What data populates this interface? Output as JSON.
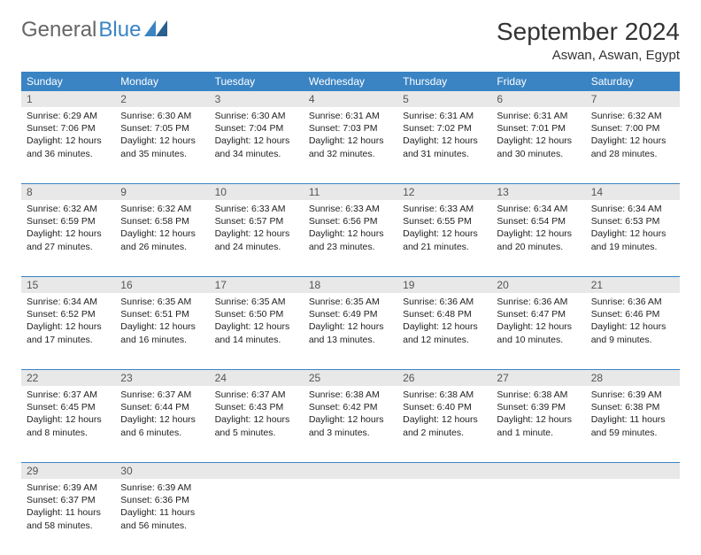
{
  "logo": {
    "text1": "General",
    "text2": "Blue"
  },
  "title": "September 2024",
  "location": "Aswan, Aswan, Egypt",
  "colors": {
    "header_bg": "#3a84c4",
    "header_text": "#ffffff",
    "daynum_bg": "#e8e8e8",
    "row_border": "#3a84c4"
  },
  "weekdays": [
    "Sunday",
    "Monday",
    "Tuesday",
    "Wednesday",
    "Thursday",
    "Friday",
    "Saturday"
  ],
  "weeks": [
    [
      {
        "n": "1",
        "sr": "6:29 AM",
        "ss": "7:06 PM",
        "dl": "12 hours and 36 minutes."
      },
      {
        "n": "2",
        "sr": "6:30 AM",
        "ss": "7:05 PM",
        "dl": "12 hours and 35 minutes."
      },
      {
        "n": "3",
        "sr": "6:30 AM",
        "ss": "7:04 PM",
        "dl": "12 hours and 34 minutes."
      },
      {
        "n": "4",
        "sr": "6:31 AM",
        "ss": "7:03 PM",
        "dl": "12 hours and 32 minutes."
      },
      {
        "n": "5",
        "sr": "6:31 AM",
        "ss": "7:02 PM",
        "dl": "12 hours and 31 minutes."
      },
      {
        "n": "6",
        "sr": "6:31 AM",
        "ss": "7:01 PM",
        "dl": "12 hours and 30 minutes."
      },
      {
        "n": "7",
        "sr": "6:32 AM",
        "ss": "7:00 PM",
        "dl": "12 hours and 28 minutes."
      }
    ],
    [
      {
        "n": "8",
        "sr": "6:32 AM",
        "ss": "6:59 PM",
        "dl": "12 hours and 27 minutes."
      },
      {
        "n": "9",
        "sr": "6:32 AM",
        "ss": "6:58 PM",
        "dl": "12 hours and 26 minutes."
      },
      {
        "n": "10",
        "sr": "6:33 AM",
        "ss": "6:57 PM",
        "dl": "12 hours and 24 minutes."
      },
      {
        "n": "11",
        "sr": "6:33 AM",
        "ss": "6:56 PM",
        "dl": "12 hours and 23 minutes."
      },
      {
        "n": "12",
        "sr": "6:33 AM",
        "ss": "6:55 PM",
        "dl": "12 hours and 21 minutes."
      },
      {
        "n": "13",
        "sr": "6:34 AM",
        "ss": "6:54 PM",
        "dl": "12 hours and 20 minutes."
      },
      {
        "n": "14",
        "sr": "6:34 AM",
        "ss": "6:53 PM",
        "dl": "12 hours and 19 minutes."
      }
    ],
    [
      {
        "n": "15",
        "sr": "6:34 AM",
        "ss": "6:52 PM",
        "dl": "12 hours and 17 minutes."
      },
      {
        "n": "16",
        "sr": "6:35 AM",
        "ss": "6:51 PM",
        "dl": "12 hours and 16 minutes."
      },
      {
        "n": "17",
        "sr": "6:35 AM",
        "ss": "6:50 PM",
        "dl": "12 hours and 14 minutes."
      },
      {
        "n": "18",
        "sr": "6:35 AM",
        "ss": "6:49 PM",
        "dl": "12 hours and 13 minutes."
      },
      {
        "n": "19",
        "sr": "6:36 AM",
        "ss": "6:48 PM",
        "dl": "12 hours and 12 minutes."
      },
      {
        "n": "20",
        "sr": "6:36 AM",
        "ss": "6:47 PM",
        "dl": "12 hours and 10 minutes."
      },
      {
        "n": "21",
        "sr": "6:36 AM",
        "ss": "6:46 PM",
        "dl": "12 hours and 9 minutes."
      }
    ],
    [
      {
        "n": "22",
        "sr": "6:37 AM",
        "ss": "6:45 PM",
        "dl": "12 hours and 8 minutes."
      },
      {
        "n": "23",
        "sr": "6:37 AM",
        "ss": "6:44 PM",
        "dl": "12 hours and 6 minutes."
      },
      {
        "n": "24",
        "sr": "6:37 AM",
        "ss": "6:43 PM",
        "dl": "12 hours and 5 minutes."
      },
      {
        "n": "25",
        "sr": "6:38 AM",
        "ss": "6:42 PM",
        "dl": "12 hours and 3 minutes."
      },
      {
        "n": "26",
        "sr": "6:38 AM",
        "ss": "6:40 PM",
        "dl": "12 hours and 2 minutes."
      },
      {
        "n": "27",
        "sr": "6:38 AM",
        "ss": "6:39 PM",
        "dl": "12 hours and 1 minute."
      },
      {
        "n": "28",
        "sr": "6:39 AM",
        "ss": "6:38 PM",
        "dl": "11 hours and 59 minutes."
      }
    ],
    [
      {
        "n": "29",
        "sr": "6:39 AM",
        "ss": "6:37 PM",
        "dl": "11 hours and 58 minutes."
      },
      {
        "n": "30",
        "sr": "6:39 AM",
        "ss": "6:36 PM",
        "dl": "11 hours and 56 minutes."
      },
      null,
      null,
      null,
      null,
      null
    ]
  ],
  "labels": {
    "sunrise": "Sunrise: ",
    "sunset": "Sunset: ",
    "daylight": "Daylight: "
  }
}
